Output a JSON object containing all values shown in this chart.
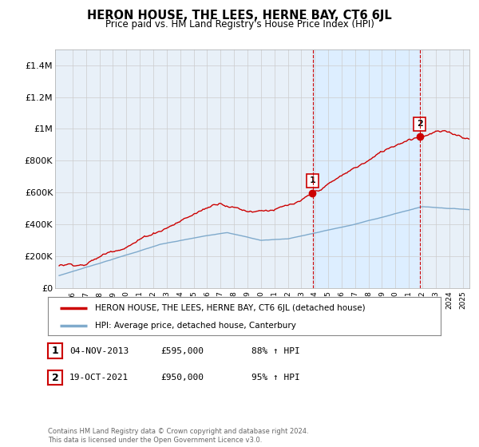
{
  "title": "HERON HOUSE, THE LEES, HERNE BAY, CT6 6JL",
  "subtitle": "Price paid vs. HM Land Registry's House Price Index (HPI)",
  "legend_line1": "HERON HOUSE, THE LEES, HERNE BAY, CT6 6JL (detached house)",
  "legend_line2": "HPI: Average price, detached house, Canterbury",
  "transaction1_label": "1",
  "transaction1_date": "04-NOV-2013",
  "transaction1_price": "£595,000",
  "transaction1_hpi": "88% ↑ HPI",
  "transaction2_label": "2",
  "transaction2_date": "19-OCT-2021",
  "transaction2_price": "£950,000",
  "transaction2_hpi": "95% ↑ HPI",
  "footer": "Contains HM Land Registry data © Crown copyright and database right 2024.\nThis data is licensed under the Open Government Licence v3.0.",
  "house_color": "#cc0000",
  "hpi_color": "#7faacc",
  "vline_color": "#cc0000",
  "highlight_color": "#ddeeff",
  "grid_color": "#cccccc",
  "bg_color": "#ffffff",
  "plot_bg_color": "#e8f0f8",
  "ylim": [
    0,
    1500000
  ],
  "yticks": [
    0,
    200000,
    400000,
    600000,
    800000,
    1000000,
    1200000,
    1400000
  ],
  "ytick_labels": [
    "£0",
    "£200K",
    "£400K",
    "£600K",
    "£800K",
    "£1M",
    "£1.2M",
    "£1.4M"
  ],
  "xstart": 1995,
  "xend": 2025,
  "transaction1_x": 2013.84,
  "transaction2_x": 2021.8,
  "house_price_at_t1": 595000,
  "house_price_at_t2": 950000
}
